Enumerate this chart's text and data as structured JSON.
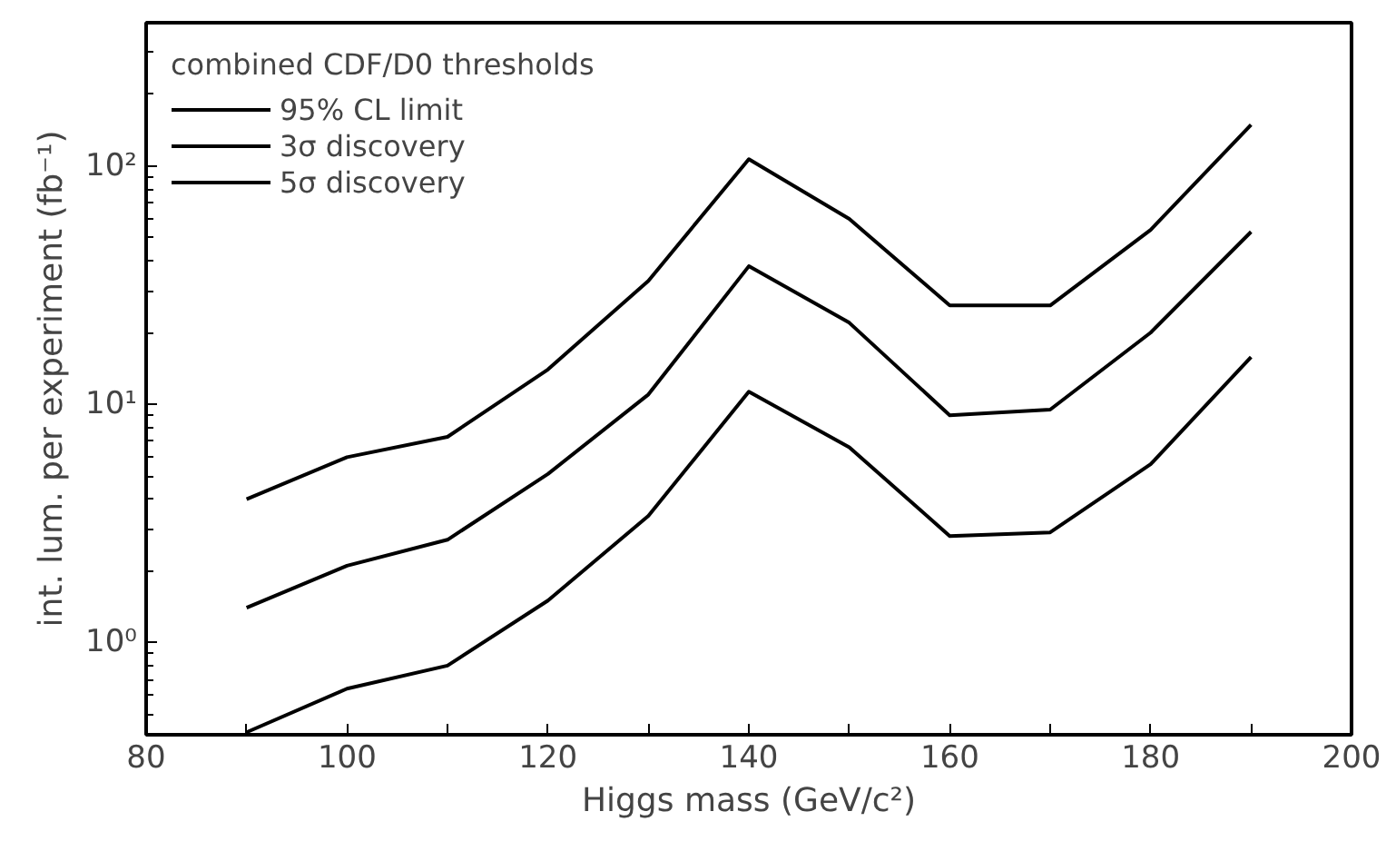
{
  "chart_data": {
    "type": "line",
    "legend_title": "combined CDF/D0 thresholds",
    "xlabel": "Higgs mass (GeV/c²)",
    "ylabel": "int. lum. per experiment (fb⁻¹)",
    "x": [
      90,
      100,
      110,
      120,
      130,
      140,
      150,
      160,
      170,
      180,
      190
    ],
    "series": [
      {
        "name": "95% CL limit",
        "color": "#000000",
        "values": [
          0.42,
          0.64,
          0.8,
          1.5,
          3.4,
          11.3,
          6.6,
          2.8,
          2.9,
          5.6,
          15.8
        ]
      },
      {
        "name": "3σ discovery",
        "color": "#000000",
        "values": [
          1.4,
          2.1,
          2.7,
          5.1,
          11,
          38,
          22,
          9.0,
          9.5,
          20,
          53
        ]
      },
      {
        "name": "5σ discovery",
        "color": "#000000",
        "values": [
          4.0,
          6.0,
          7.3,
          14,
          33,
          107,
          60,
          26,
          26,
          54,
          149
        ]
      }
    ],
    "xlim": [
      80,
      200
    ],
    "ylim": [
      0.41,
      400
    ],
    "xticks": [
      80,
      {
        "value": 90,
        "label": null
      },
      100,
      {
        "value": 110,
        "label": null
      },
      120,
      {
        "value": 130,
        "label": null
      },
      140,
      {
        "value": 150,
        "label": null
      },
      160,
      {
        "value": 170,
        "label": null
      },
      180,
      {
        "value": 190,
        "label": null
      },
      200
    ],
    "yticks": [
      {
        "value": 1,
        "label": "10⁰"
      },
      {
        "value": 10,
        "label": "10¹"
      },
      {
        "value": 100,
        "label": "10²"
      }
    ],
    "log": "y",
    "grid": false,
    "legend": "top left",
    "marker": "none",
    "line_style": "solid"
  }
}
